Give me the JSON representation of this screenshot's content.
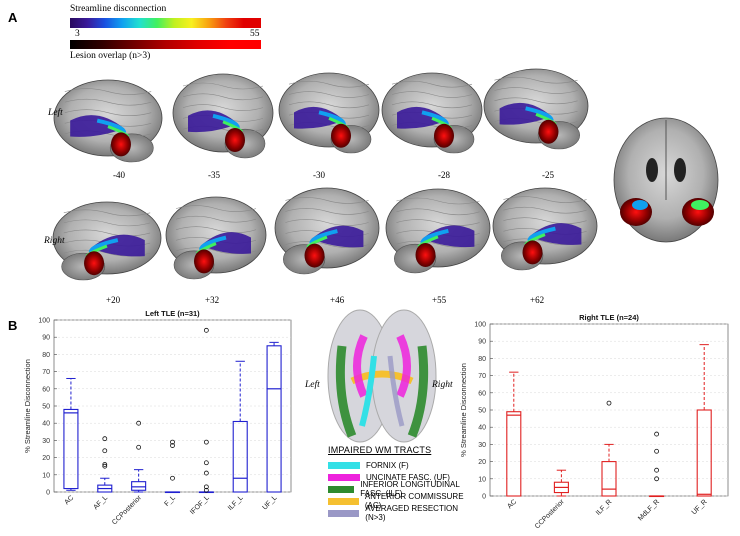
{
  "panel_a": {
    "letter": "A",
    "colorbar_streamline": {
      "label": "Streamline disconnection",
      "min": "3",
      "max": "55"
    },
    "colorbar_lesion": {
      "label": "Lesion overlap (n>3)"
    },
    "hemi_left": "Left",
    "hemi_right": "Right",
    "top_row_slices": [
      "-40",
      "-35",
      "-30",
      "-28",
      "-25"
    ],
    "bottom_row_slices": [
      "+20",
      "+32",
      "+46",
      "+55",
      "+62"
    ]
  },
  "panel_b": {
    "letter": "B",
    "hemi_left": "Left",
    "hemi_right": "Right",
    "legend": {
      "title": "Impaired WM tracts",
      "items": [
        {
          "label": "Fornix (F)",
          "color": "#33e0e6"
        },
        {
          "label": "Uncinate fasc. (UF)",
          "color": "#ee22dd"
        },
        {
          "label": "Inferior longitudinal fasc. (ILF)",
          "color": "#2e8b2e"
        },
        {
          "label": "Anterior commissure (AC)",
          "color": "#f5c030"
        },
        {
          "label": "Averaged resection (n>3)",
          "color": "#9a98c6"
        }
      ]
    }
  },
  "chart_data": [
    {
      "type": "box",
      "title": "Left TLE (n=31)",
      "ylabel": "% Streamline Disconnection",
      "xlabel": "",
      "ylim": [
        0,
        100
      ],
      "yticks": [
        0,
        10,
        20,
        30,
        40,
        50,
        60,
        70,
        80,
        90,
        100
      ],
      "grid": true,
      "color": "#2020d0",
      "categories": [
        "AC",
        "AF_L",
        "CCPosterior",
        "F_L",
        "IFOF_L",
        "ILF_L",
        "UF_L"
      ],
      "boxes": [
        {
          "whislo": 1,
          "q1": 2,
          "med": 46,
          "q3": 48,
          "whishi": 66,
          "fliers": []
        },
        {
          "whislo": 0,
          "q1": 0,
          "med": 2,
          "q3": 4,
          "whishi": 8,
          "fliers": [
            15,
            16,
            24,
            31
          ]
        },
        {
          "whislo": 0,
          "q1": 1,
          "med": 3,
          "q3": 6,
          "whishi": 13,
          "fliers": [
            26,
            40
          ]
        },
        {
          "whislo": 0,
          "q1": 0,
          "med": 0,
          "q3": 0,
          "whishi": 0,
          "fliers": [
            8,
            27,
            29
          ]
        },
        {
          "whislo": 0,
          "q1": 0,
          "med": 0,
          "q3": 0,
          "whishi": 0,
          "fliers": [
            1,
            3,
            11,
            17,
            29,
            94
          ]
        },
        {
          "whislo": 0,
          "q1": 0,
          "med": 8,
          "q3": 41,
          "whishi": 76,
          "fliers": []
        },
        {
          "whislo": 0,
          "q1": 0,
          "med": 60,
          "q3": 85,
          "whishi": 87,
          "fliers": []
        }
      ]
    },
    {
      "type": "box",
      "title": "Right TLE (n=24)",
      "ylabel": "% Streamline Disconnection",
      "xlabel": "",
      "ylim": [
        0,
        100
      ],
      "yticks": [
        0,
        10,
        20,
        30,
        40,
        50,
        60,
        70,
        80,
        90,
        100
      ],
      "grid": true,
      "color": "#e02020",
      "categories": [
        "AC",
        "CCPosterior",
        "ILF_R",
        "MdLF_R",
        "UF_R"
      ],
      "boxes": [
        {
          "whislo": 0,
          "q1": 0,
          "med": 47,
          "q3": 49,
          "whishi": 72,
          "fliers": []
        },
        {
          "whislo": 0,
          "q1": 2,
          "med": 5,
          "q3": 8,
          "whishi": 15,
          "fliers": []
        },
        {
          "whislo": 0,
          "q1": 0,
          "med": 4,
          "q3": 20,
          "whishi": 30,
          "fliers": [
            54
          ]
        },
        {
          "whislo": 0,
          "q1": 0,
          "med": 0,
          "q3": 0,
          "whishi": 0,
          "fliers": [
            10,
            15,
            26,
            36
          ]
        },
        {
          "whislo": 0,
          "q1": 0,
          "med": 1,
          "q3": 50,
          "whishi": 88,
          "fliers": []
        }
      ]
    }
  ]
}
